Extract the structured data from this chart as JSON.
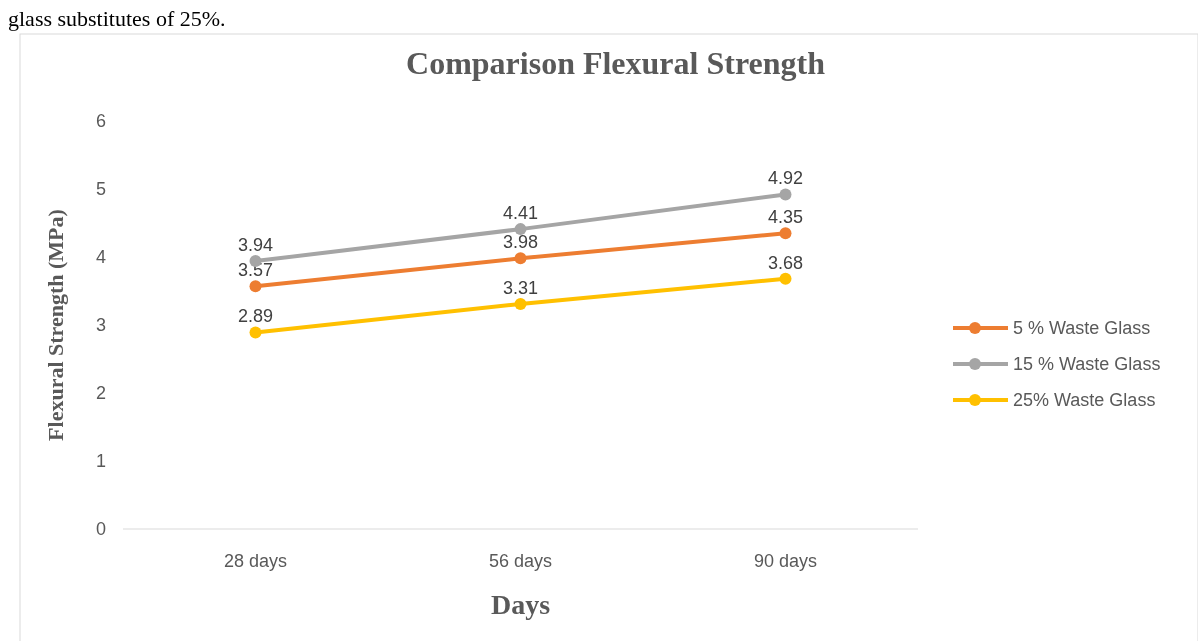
{
  "chart_data": {
    "type": "line",
    "title": "Comparison  Flexural Strength",
    "xlabel": "Days",
    "ylabel": "Flexural  Strength (MPa)",
    "annotations": [
      "glass substitutes of 25%."
    ],
    "categories": [
      "28 days",
      "56 days",
      "90 days"
    ],
    "series": [
      {
        "name": "5 % Waste Glass",
        "color": "#ed7d31",
        "values": [
          3.57,
          3.98,
          4.35
        ]
      },
      {
        "name": "15 % Waste Glass",
        "color": "#a5a5a5",
        "values": [
          3.94,
          4.41,
          4.92
        ]
      },
      {
        "name": "25% Waste Glass",
        "color": "#ffc000",
        "values": [
          2.89,
          3.31,
          3.68
        ]
      }
    ],
    "ylim": [
      0,
      6
    ],
    "yticks": [
      0,
      1,
      2,
      3,
      4,
      5,
      6
    ],
    "grid": false,
    "legend": "right",
    "marker": "circle",
    "line_style": "solid",
    "data_labels": true
  }
}
